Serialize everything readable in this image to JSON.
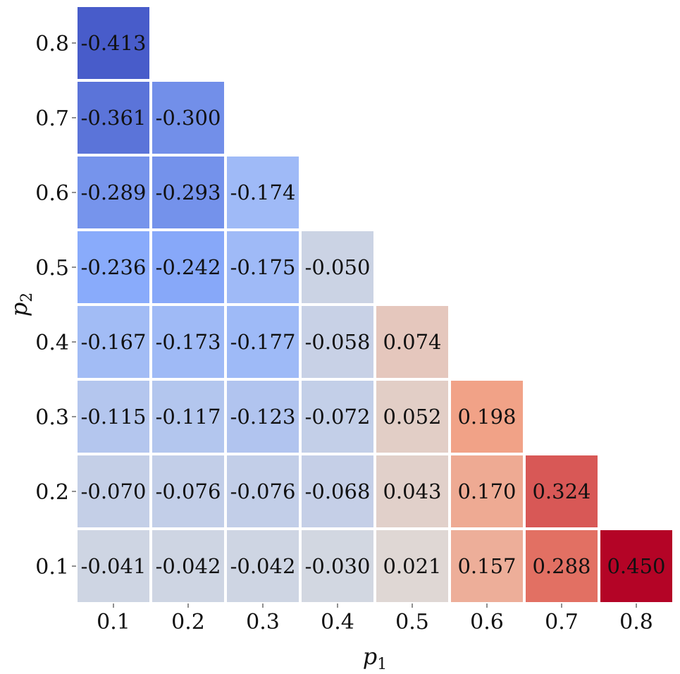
{
  "chart_data": {
    "type": "heatmap",
    "title": "",
    "xlabel": "p",
    "xlabel_subscript": "1",
    "ylabel": "p",
    "ylabel_subscript": "2",
    "x_categories": [
      "0.1",
      "0.2",
      "0.3",
      "0.4",
      "0.5",
      "0.6",
      "0.7",
      "0.8"
    ],
    "y_categories": [
      "0.1",
      "0.2",
      "0.3",
      "0.4",
      "0.5",
      "0.6",
      "0.7",
      "0.8"
    ],
    "color_range": [
      -0.45,
      0.45
    ],
    "colormap": "coolwarm",
    "cells": [
      {
        "x": "0.1",
        "y": "0.1",
        "value": "-0.041"
      },
      {
        "x": "0.2",
        "y": "0.1",
        "value": "-0.042"
      },
      {
        "x": "0.3",
        "y": "0.1",
        "value": "-0.042"
      },
      {
        "x": "0.4",
        "y": "0.1",
        "value": "-0.030"
      },
      {
        "x": "0.5",
        "y": "0.1",
        "value": "0.021"
      },
      {
        "x": "0.6",
        "y": "0.1",
        "value": "0.157"
      },
      {
        "x": "0.7",
        "y": "0.1",
        "value": "0.288"
      },
      {
        "x": "0.8",
        "y": "0.1",
        "value": "0.450"
      },
      {
        "x": "0.1",
        "y": "0.2",
        "value": "-0.070"
      },
      {
        "x": "0.2",
        "y": "0.2",
        "value": "-0.076"
      },
      {
        "x": "0.3",
        "y": "0.2",
        "value": "-0.076"
      },
      {
        "x": "0.4",
        "y": "0.2",
        "value": "-0.068"
      },
      {
        "x": "0.5",
        "y": "0.2",
        "value": "0.043"
      },
      {
        "x": "0.6",
        "y": "0.2",
        "value": "0.170"
      },
      {
        "x": "0.7",
        "y": "0.2",
        "value": "0.324"
      },
      {
        "x": "0.1",
        "y": "0.3",
        "value": "-0.115"
      },
      {
        "x": "0.2",
        "y": "0.3",
        "value": "-0.117"
      },
      {
        "x": "0.3",
        "y": "0.3",
        "value": "-0.123"
      },
      {
        "x": "0.4",
        "y": "0.3",
        "value": "-0.072"
      },
      {
        "x": "0.5",
        "y": "0.3",
        "value": "0.052"
      },
      {
        "x": "0.6",
        "y": "0.3",
        "value": "0.198"
      },
      {
        "x": "0.1",
        "y": "0.4",
        "value": "-0.167"
      },
      {
        "x": "0.2",
        "y": "0.4",
        "value": "-0.173"
      },
      {
        "x": "0.3",
        "y": "0.4",
        "value": "-0.177"
      },
      {
        "x": "0.4",
        "y": "0.4",
        "value": "-0.058"
      },
      {
        "x": "0.5",
        "y": "0.4",
        "value": "0.074"
      },
      {
        "x": "0.1",
        "y": "0.5",
        "value": "-0.236"
      },
      {
        "x": "0.2",
        "y": "0.5",
        "value": "-0.242"
      },
      {
        "x": "0.3",
        "y": "0.5",
        "value": "-0.175"
      },
      {
        "x": "0.4",
        "y": "0.5",
        "value": "-0.050"
      },
      {
        "x": "0.1",
        "y": "0.6",
        "value": "-0.289"
      },
      {
        "x": "0.2",
        "y": "0.6",
        "value": "-0.293"
      },
      {
        "x": "0.3",
        "y": "0.6",
        "value": "-0.174"
      },
      {
        "x": "0.1",
        "y": "0.7",
        "value": "-0.361"
      },
      {
        "x": "0.2",
        "y": "0.7",
        "value": "-0.300"
      },
      {
        "x": "0.1",
        "y": "0.8",
        "value": "-0.413"
      }
    ]
  }
}
